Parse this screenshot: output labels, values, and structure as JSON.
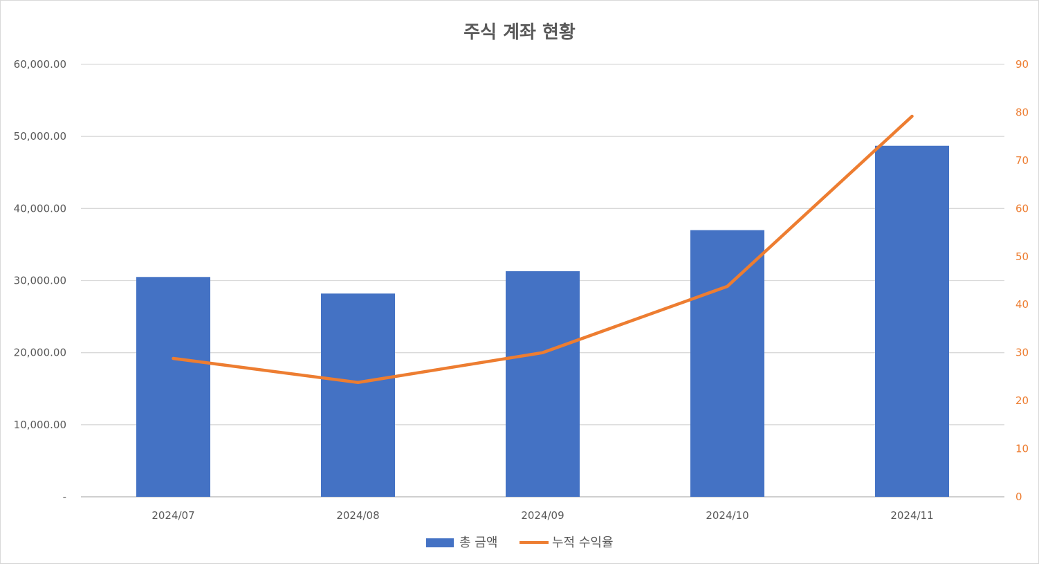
{
  "chart_data": {
    "type": "bar",
    "title": "주식 계좌 현황",
    "categories": [
      "2024/07",
      "2024/08",
      "2024/09",
      "2024/10",
      "2024/11"
    ],
    "series": [
      {
        "name": "총 금액",
        "type": "bar",
        "axis": "left",
        "color": "#4472c4",
        "values": [
          30500,
          28200,
          31300,
          37000,
          48700
        ]
      },
      {
        "name": "누적 수익율",
        "type": "line",
        "axis": "right",
        "color": "#ed7d31",
        "values": [
          28.8,
          23.8,
          30.0,
          43.8,
          79.2
        ]
      }
    ],
    "y_left": {
      "ylim": [
        0,
        60000
      ],
      "tick_labels": [
        "-",
        "10,000.00",
        "20,000.00",
        "30,000.00",
        "40,000.00",
        "50,000.00",
        "60,000.00"
      ]
    },
    "y_right": {
      "ylim": [
        0,
        90
      ],
      "tick_labels": [
        "0",
        "10",
        "20",
        "30",
        "40",
        "50",
        "60",
        "70",
        "80",
        "90"
      ]
    },
    "grid": true,
    "legend": "bottom"
  }
}
